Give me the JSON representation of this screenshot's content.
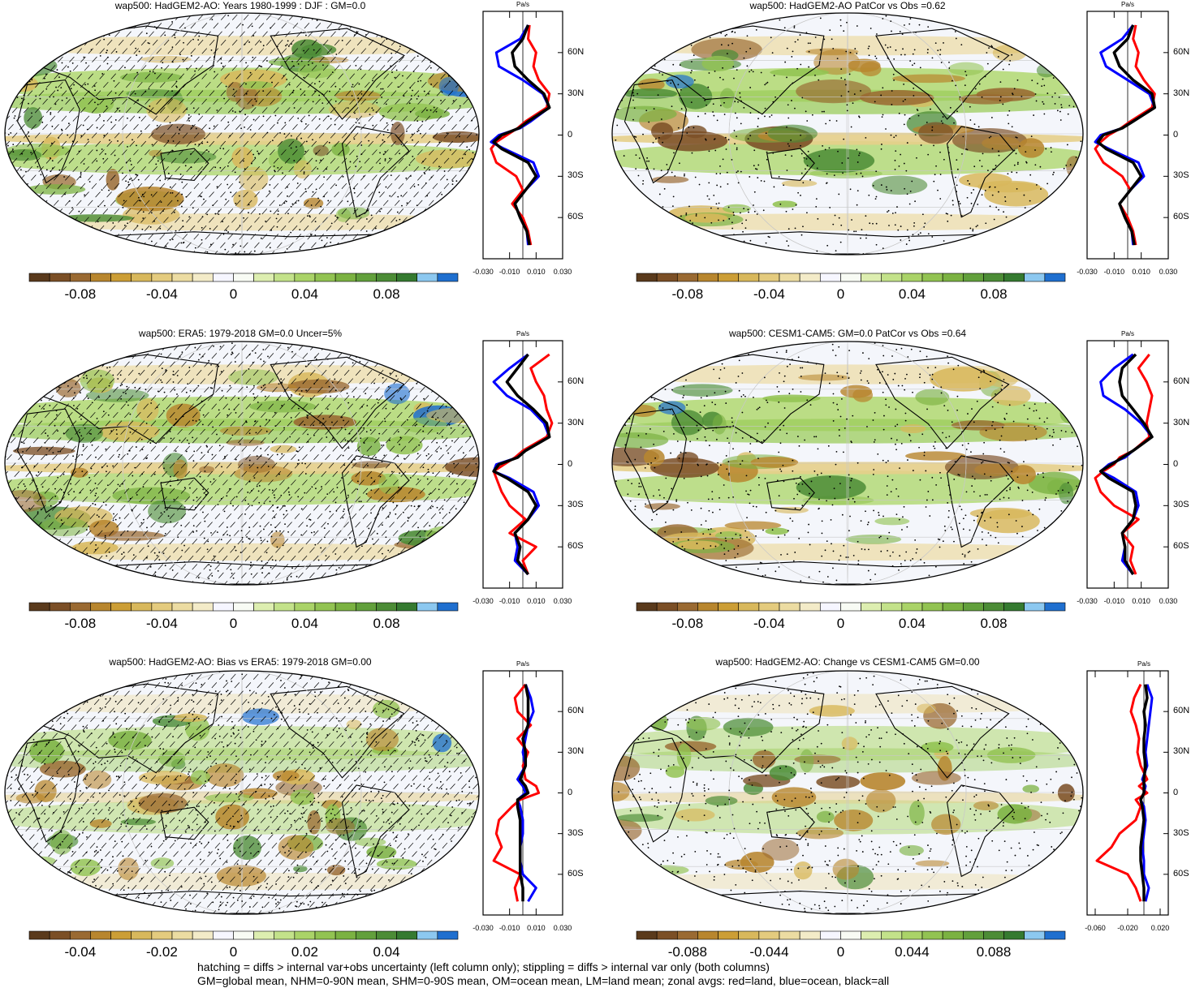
{
  "figure": {
    "footer_line1": "hatching = diffs > internal var+obs uncertainty (left column only); stippling = diffs > internal var only (both columns)",
    "footer_line2": "GM=global mean, NHM=0-90N mean, SHM=0-90S mean, OM=ocean mean, LM=land mean; zonal avgs: red=land, blue=ocean, black=all"
  },
  "colors": {
    "land": "#ff0000",
    "ocean": "#0000ff",
    "all": "#000000",
    "colorbar": [
      "#5a3a1c",
      "#7b4f26",
      "#9a6a32",
      "#b8862e",
      "#cc9e36",
      "#d8b85c",
      "#e4cb7e",
      "#ecdca2",
      "#f3ebc8",
      "#f6f6ff",
      "#f8fbf4",
      "#ddeeb0",
      "#c3e28a",
      "#aad368",
      "#92c352",
      "#7bb242",
      "#62a03c",
      "#4c8c36",
      "#357a30",
      "#8cc8f0",
      "#1f6fcf"
    ]
  },
  "chart_data": [
    {
      "id": "p1",
      "type": "heatmap",
      "title": "wap500: HadGEM2-AO: Years 1980-1999 : DJF : GM=0.0",
      "colorbar_labels": [
        "-0.08",
        "-0.04",
        "0",
        "0.04",
        "0.08"
      ],
      "hatching": true,
      "zonal": {
        "unit": "Pa/s",
        "xticks": [
          "-0.030",
          "-0.010",
          "0.010",
          "0.030"
        ],
        "xlim": [
          -0.03,
          0.03
        ],
        "yticks": [
          "60N",
          "30N",
          "0",
          "30S",
          "60S"
        ],
        "lat": [
          80,
          70,
          60,
          50,
          40,
          30,
          20,
          10,
          5,
          0,
          -5,
          -10,
          -20,
          -30,
          -40,
          -50,
          -60,
          -70,
          -80
        ],
        "land": [
          0.005,
          0.004,
          0.01,
          0.008,
          0.012,
          0.02,
          0.018,
          0.002,
          -0.004,
          -0.012,
          -0.02,
          -0.024,
          -0.02,
          -0.005,
          0.0,
          -0.008,
          0.0,
          0.004,
          0.006
        ],
        "ocean": [
          0.004,
          -0.002,
          -0.02,
          -0.018,
          0.0,
          0.015,
          0.02,
          0.006,
          -0.002,
          -0.018,
          -0.024,
          -0.014,
          0.008,
          0.012,
          0.002,
          -0.006,
          -0.002,
          0.003,
          0.004
        ],
        "all": [
          0.004,
          0.0,
          -0.008,
          -0.006,
          0.004,
          0.016,
          0.02,
          0.004,
          -0.003,
          -0.016,
          -0.022,
          -0.016,
          0.004,
          0.01,
          0.002,
          -0.006,
          -0.002,
          0.003,
          0.005
        ]
      }
    },
    {
      "id": "p2",
      "type": "heatmap",
      "title": "wap500: HadGEM2-AO PatCor vs Obs =0.62",
      "colorbar_labels": [
        "-0.08",
        "-0.04",
        "0",
        "0.04",
        "0.08"
      ],
      "hatching": false,
      "zonal": {
        "unit": "Pa/s",
        "xticks": [
          "-0.030",
          "-0.010",
          "0.010",
          "0.030"
        ],
        "xlim": [
          -0.03,
          0.03
        ],
        "yticks": [
          "60N",
          "30N",
          "0",
          "30S",
          "60S"
        ],
        "lat": [
          80,
          70,
          60,
          50,
          40,
          30,
          20,
          10,
          5,
          0,
          -5,
          -10,
          -20,
          -30,
          -40,
          -50,
          -60,
          -70,
          -80
        ],
        "land": [
          0.006,
          0.004,
          0.008,
          0.006,
          0.012,
          0.02,
          0.018,
          0.002,
          -0.005,
          -0.014,
          -0.02,
          -0.024,
          -0.018,
          -0.004,
          0.002,
          -0.006,
          0.0,
          0.004,
          0.006
        ],
        "ocean": [
          0.004,
          -0.004,
          -0.02,
          -0.016,
          0.0,
          0.016,
          0.02,
          0.004,
          -0.004,
          -0.02,
          -0.024,
          -0.014,
          0.008,
          0.012,
          0.002,
          -0.006,
          -0.002,
          0.003,
          0.004
        ],
        "all": [
          0.004,
          0.0,
          -0.01,
          -0.006,
          0.004,
          0.018,
          0.02,
          0.004,
          -0.004,
          -0.018,
          -0.022,
          -0.016,
          0.004,
          0.01,
          0.002,
          -0.006,
          -0.002,
          0.003,
          0.005
        ]
      }
    },
    {
      "id": "p3",
      "type": "heatmap",
      "title": "wap500: ERA5: 1979-2018 GM=0.0 Uncer=5%",
      "colorbar_labels": [
        "-0.08",
        "-0.04",
        "0",
        "0.04",
        "0.08"
      ],
      "hatching": true,
      "zonal": {
        "unit": "Pa/s",
        "xticks": [
          "-0.030",
          "-0.010",
          "0.010",
          "0.030"
        ],
        "xlim": [
          -0.03,
          0.03
        ],
        "yticks": [
          "60N",
          "30N",
          "0",
          "30S",
          "60S"
        ],
        "lat": [
          80,
          70,
          60,
          50,
          40,
          30,
          20,
          10,
          5,
          0,
          -5,
          -10,
          -20,
          -30,
          -40,
          -50,
          -60,
          -70,
          -80
        ],
        "land": [
          0.02,
          0.006,
          0.01,
          0.016,
          0.018,
          0.022,
          0.018,
          0.0,
          -0.006,
          -0.014,
          -0.022,
          -0.02,
          -0.016,
          -0.01,
          0.002,
          -0.01,
          0.01,
          0.0,
          0.004
        ],
        "ocean": [
          0.004,
          -0.01,
          -0.022,
          -0.012,
          0.006,
          0.016,
          0.02,
          0.002,
          -0.004,
          -0.02,
          -0.022,
          -0.01,
          0.008,
          0.012,
          0.004,
          -0.006,
          -0.004,
          -0.006,
          0.004
        ],
        "all": [
          0.004,
          -0.004,
          -0.012,
          -0.004,
          0.008,
          0.018,
          0.02,
          0.002,
          -0.004,
          -0.018,
          -0.022,
          -0.012,
          0.004,
          0.01,
          0.004,
          -0.006,
          -0.002,
          -0.004,
          0.004
        ]
      }
    },
    {
      "id": "p4",
      "type": "heatmap",
      "title": "wap500: CESM1-CAM5: GM=0.0 PatCor vs Obs =0.64",
      "colorbar_labels": [
        "-0.08",
        "-0.04",
        "0",
        "0.04",
        "0.08"
      ],
      "hatching": false,
      "zonal": {
        "unit": "Pa/s",
        "xticks": [
          "-0.030",
          "-0.010",
          "0.010",
          "0.030"
        ],
        "xlim": [
          -0.03,
          0.03
        ],
        "yticks": [
          "60N",
          "30N",
          "0",
          "30S",
          "60S"
        ],
        "lat": [
          80,
          70,
          60,
          50,
          40,
          30,
          20,
          10,
          5,
          0,
          -5,
          -10,
          -20,
          -30,
          -40,
          -50,
          -60,
          -70,
          -80
        ],
        "land": [
          0.016,
          0.008,
          0.014,
          0.018,
          0.016,
          0.014,
          0.016,
          0.004,
          -0.006,
          -0.01,
          -0.018,
          -0.024,
          -0.02,
          -0.01,
          0.008,
          -0.004,
          0.004,
          0.002,
          0.006
        ],
        "ocean": [
          0.004,
          -0.01,
          -0.02,
          -0.018,
          -0.002,
          0.01,
          0.018,
          0.004,
          -0.002,
          -0.014,
          -0.02,
          -0.01,
          0.006,
          0.008,
          0.004,
          -0.004,
          -0.002,
          -0.004,
          0.004
        ],
        "all": [
          0.006,
          -0.004,
          -0.006,
          -0.004,
          0.004,
          0.012,
          0.018,
          0.004,
          -0.004,
          -0.012,
          -0.02,
          -0.014,
          0.004,
          0.006,
          0.004,
          -0.004,
          -0.002,
          -0.002,
          0.004
        ]
      }
    },
    {
      "id": "p5",
      "type": "heatmap",
      "title": "wap500: HadGEM2-AO: Bias vs ERA5: 1979-2018 GM=0.00",
      "colorbar_labels": [
        "-0.04",
        "-0.02",
        "0",
        "0.02",
        "0.04"
      ],
      "hatching": true,
      "zonal": {
        "unit": "Pa/s",
        "xticks": [
          "-0.030",
          "-0.010",
          "0.010",
          "0.030"
        ],
        "xlim": [
          -0.03,
          0.03
        ],
        "yticks": [
          "60N",
          "30N",
          "0",
          "30S",
          "60S"
        ],
        "lat": [
          80,
          70,
          60,
          50,
          40,
          30,
          20,
          10,
          5,
          0,
          -5,
          -10,
          -20,
          -30,
          -40,
          -50,
          -60,
          -70,
          -80
        ],
        "land": [
          0.002,
          -0.006,
          -0.004,
          0.006,
          -0.004,
          0.004,
          0.0,
          0.002,
          0.01,
          0.012,
          -0.002,
          -0.008,
          -0.018,
          -0.02,
          -0.016,
          -0.022,
          -0.002,
          -0.006,
          -0.004
        ],
        "ocean": [
          0.002,
          0.006,
          0.008,
          0.004,
          0.002,
          0.0,
          0.002,
          -0.004,
          0.0,
          0.002,
          -0.004,
          -0.002,
          0.0,
          0.0,
          -0.002,
          -0.002,
          0.0,
          0.01,
          0.004
        ],
        "all": [
          0.002,
          0.004,
          0.004,
          0.004,
          0.0,
          0.002,
          0.002,
          -0.002,
          0.002,
          0.004,
          -0.004,
          -0.004,
          -0.002,
          -0.002,
          -0.002,
          -0.002,
          -0.002,
          0.0,
          0.0
        ]
      }
    },
    {
      "id": "p6",
      "type": "heatmap",
      "title": "wap500: HadGEM2-AO: Change vs CESM1-CAM5 GM=0.00",
      "colorbar_labels": [
        "-0.088",
        "-0.044",
        "0",
        "0.044",
        "0.088"
      ],
      "hatching": false,
      "zonal": {
        "unit": "Pa/s",
        "xticks": [
          "-0.060",
          "-0.020",
          "0.020"
        ],
        "xlim": [
          -0.07,
          0.03
        ],
        "yticks": [
          "60N",
          "30N",
          "0",
          "30S",
          "60S"
        ],
        "lat": [
          80,
          70,
          60,
          50,
          40,
          30,
          20,
          10,
          5,
          0,
          -5,
          -10,
          -20,
          -30,
          -40,
          -50,
          -60,
          -70,
          -80
        ],
        "land": [
          -0.004,
          -0.012,
          -0.016,
          -0.01,
          -0.006,
          -0.008,
          -0.004,
          0.004,
          -0.006,
          0.004,
          -0.01,
          -0.004,
          -0.01,
          -0.03,
          -0.04,
          -0.058,
          -0.02,
          -0.01,
          -0.004
        ],
        "ocean": [
          0.004,
          0.01,
          0.008,
          0.006,
          0.004,
          0.002,
          0.004,
          -0.002,
          0.002,
          0.0,
          -0.004,
          0.0,
          0.002,
          0.0,
          -0.002,
          0.0,
          0.0,
          0.006,
          0.002
        ],
        "all": [
          0.002,
          0.004,
          0.0,
          0.002,
          0.0,
          0.0,
          0.002,
          0.0,
          0.0,
          0.0,
          -0.004,
          -0.002,
          0.0,
          -0.002,
          -0.004,
          -0.004,
          -0.002,
          0.0,
          0.0
        ]
      }
    }
  ]
}
